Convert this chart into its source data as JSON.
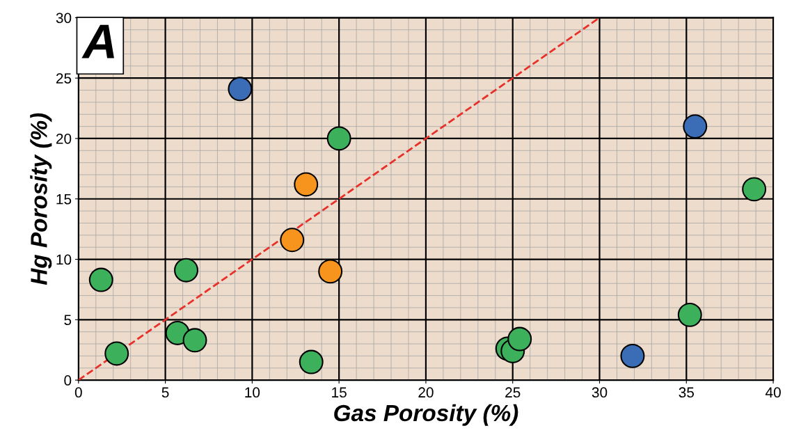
{
  "chart_data": {
    "type": "scatter",
    "xlabel": "Gas Porosity (%)",
    "ylabel": "Hg Porosity (%)",
    "annotations": [
      "A"
    ],
    "xlim": [
      0,
      40
    ],
    "ylim": [
      0,
      30
    ],
    "xticks": [
      0,
      5,
      10,
      15,
      20,
      25,
      30,
      35,
      40
    ],
    "yticks": [
      0,
      5,
      10,
      15,
      20,
      25,
      30
    ],
    "grid": true,
    "marker": "circle",
    "series": [
      {
        "color": "#3a6db5",
        "x": [
          9.3,
          35.5,
          31.9
        ],
        "values": [
          24.1,
          21.0,
          2.0
        ]
      },
      {
        "color": "#f7941d",
        "x": [
          13.1,
          12.3,
          14.5
        ],
        "values": [
          16.2,
          11.6,
          9.0
        ]
      },
      {
        "color": "#3cb05a",
        "x": [
          15.0,
          38.9,
          1.3,
          6.2,
          2.2,
          5.7,
          6.7,
          13.4,
          24.7,
          25.0,
          25.4,
          35.2
        ],
        "values": [
          20.0,
          15.8,
          8.3,
          9.1,
          2.2,
          3.9,
          3.3,
          1.5,
          2.6,
          2.4,
          3.4,
          5.4
        ]
      },
      {
        "type": "line",
        "color": "#e8302a",
        "line_style": "dashed",
        "marker": "none",
        "x": [
          0,
          30
        ],
        "values": [
          0,
          30
        ]
      }
    ]
  }
}
